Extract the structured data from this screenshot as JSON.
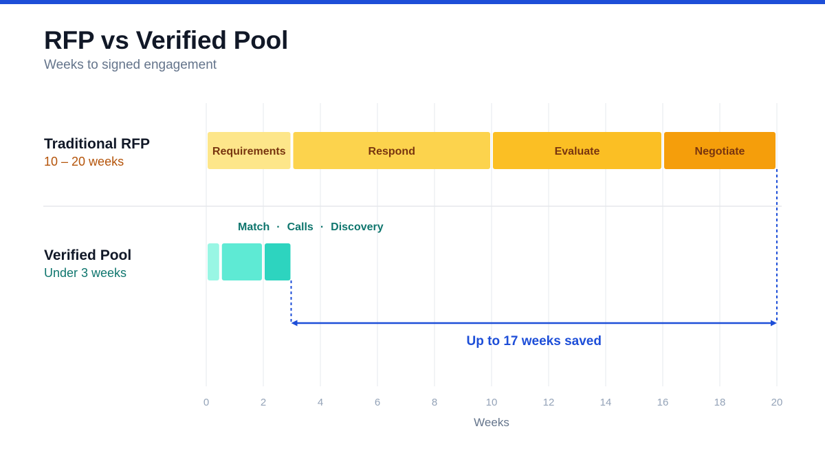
{
  "page": {
    "title": "RFP vs Verified Pool",
    "subtitle": "Weeks to signed engagement"
  },
  "chart_data": {
    "type": "timeline",
    "xlabel": "Weeks",
    "xlim": [
      0,
      20
    ],
    "xticks": [
      0,
      2,
      4,
      6,
      8,
      10,
      12,
      14,
      16,
      18,
      20
    ],
    "grid": true,
    "rows": [
      {
        "label": "Traditional RFP",
        "sublabel": "10 – 20 weeks",
        "sublabel_color": "#b45309",
        "phases": [
          {
            "name": "Requirements",
            "start": 0,
            "end": 3,
            "color": "#fde68a"
          },
          {
            "name": "Respond",
            "start": 3,
            "end": 10,
            "color": "#fcd34d"
          },
          {
            "name": "Evaluate",
            "start": 10,
            "end": 16,
            "color": "#fbbf24"
          },
          {
            "name": "Negotiate",
            "start": 16,
            "end": 20,
            "color": "#f59e0b"
          }
        ]
      },
      {
        "label": "Verified Pool",
        "sublabel": "Under 3 weeks",
        "sublabel_color": "#0f766e",
        "phase_caption": [
          "Match",
          "Calls",
          "Discovery"
        ],
        "phase_caption_separator": "·",
        "phases": [
          {
            "name": "Match",
            "start": 0,
            "end": 0.5,
            "color": "#99f6e4"
          },
          {
            "name": "Calls",
            "start": 0.5,
            "end": 2,
            "color": "#5eead4"
          },
          {
            "name": "Discovery",
            "start": 2,
            "end": 3,
            "color": "#2dd4bf"
          }
        ]
      }
    ],
    "annotation": {
      "text": "Up to 17 weeks saved",
      "from": 3,
      "to": 20,
      "color": "#1d4ed8"
    }
  }
}
